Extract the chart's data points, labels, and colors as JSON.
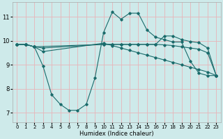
{
  "xlabel": "Humidex (Indice chaleur)",
  "bg_color": "#ceeaea",
  "grid_color": "#e8b4b8",
  "line_color": "#1a6b6b",
  "xlim": [
    -0.5,
    23.5
  ],
  "ylim": [
    6.6,
    11.6
  ],
  "yticks": [
    7,
    8,
    9,
    10,
    11
  ],
  "xticks": [
    0,
    1,
    2,
    3,
    4,
    5,
    6,
    7,
    8,
    9,
    10,
    11,
    12,
    13,
    14,
    15,
    16,
    17,
    18,
    19,
    20,
    21,
    22,
    23
  ],
  "lines": [
    {
      "x": [
        0,
        1,
        2,
        3,
        4,
        5,
        6,
        7,
        8,
        9,
        10,
        11,
        12,
        13,
        14,
        15,
        16,
        17,
        18,
        19,
        20,
        21,
        22,
        23
      ],
      "y": [
        9.85,
        9.85,
        9.75,
        8.95,
        7.75,
        7.35,
        7.1,
        7.1,
        7.35,
        8.45,
        10.35,
        11.2,
        10.9,
        11.15,
        11.15,
        10.45,
        10.15,
        10.05,
        9.95,
        9.95,
        9.15,
        8.65,
        8.55,
        8.55
      ]
    },
    {
      "x": [
        0,
        1,
        2,
        3,
        10,
        11,
        12,
        13,
        14,
        15,
        16,
        17,
        18,
        19,
        20,
        21,
        22,
        23
      ],
      "y": [
        9.85,
        9.85,
        9.75,
        9.55,
        9.9,
        9.8,
        9.7,
        9.6,
        9.5,
        9.4,
        9.3,
        9.2,
        9.1,
        9.0,
        8.9,
        8.8,
        8.7,
        8.55
      ]
    },
    {
      "x": [
        0,
        1,
        2,
        3,
        10,
        11,
        12,
        13,
        14,
        15,
        16,
        17,
        18,
        19,
        20,
        21,
        22,
        23
      ],
      "y": [
        9.85,
        9.85,
        9.75,
        9.7,
        9.85,
        9.85,
        9.85,
        9.85,
        9.85,
        9.85,
        9.85,
        9.83,
        9.8,
        9.75,
        9.7,
        9.65,
        9.5,
        8.55
      ]
    },
    {
      "x": [
        0,
        1,
        2,
        10,
        11,
        12,
        13,
        14,
        15,
        16,
        17,
        18,
        19,
        20,
        21,
        22,
        23
      ],
      "y": [
        9.85,
        9.85,
        9.75,
        9.85,
        9.85,
        9.85,
        9.85,
        9.85,
        9.85,
        9.85,
        10.2,
        10.2,
        10.05,
        9.97,
        9.92,
        9.7,
        8.55
      ]
    }
  ]
}
